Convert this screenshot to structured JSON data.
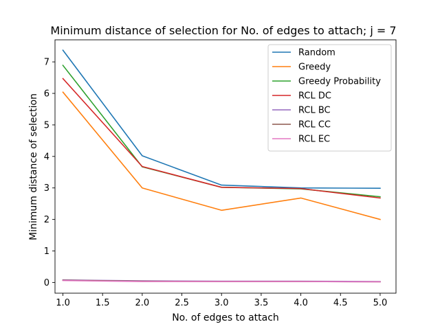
{
  "chart_data": {
    "type": "line",
    "title": "Minimum distance of selection for No. of edges to attach; j = 7",
    "xlabel": "No. of edges to attach",
    "ylabel": "Minimum distance of selection",
    "x": [
      1.0,
      2.0,
      3.0,
      4.0,
      5.0
    ],
    "xlim": [
      0.9,
      5.2
    ],
    "ylim": [
      -0.34,
      7.7
    ],
    "xticks": [
      1.0,
      1.5,
      2.0,
      2.5,
      3.0,
      3.5,
      4.0,
      4.5,
      5.0
    ],
    "xtick_labels": [
      "1.0",
      "1.5",
      "2.0",
      "2.5",
      "3.0",
      "3.5",
      "4.0",
      "4.5",
      "5.0"
    ],
    "yticks": [
      0,
      1,
      2,
      3,
      4,
      5,
      6,
      7
    ],
    "ytick_labels": [
      "0",
      "1",
      "2",
      "3",
      "4",
      "5",
      "6",
      "7"
    ],
    "grid": false,
    "legend_position": "top-right",
    "series": [
      {
        "name": "Random",
        "color": "#1f77b4",
        "values": [
          7.37,
          4.02,
          3.09,
          3.0,
          2.99
        ]
      },
      {
        "name": "Greedy",
        "color": "#ff7f0e",
        "values": [
          6.04,
          3.0,
          2.29,
          2.68,
          2.0
        ]
      },
      {
        "name": "Greedy Probability",
        "color": "#2ca02c",
        "values": [
          6.89,
          3.67,
          3.02,
          2.97,
          2.72
        ]
      },
      {
        "name": "RCL DC",
        "color": "#d62728",
        "values": [
          6.47,
          3.68,
          3.02,
          2.98,
          2.68
        ]
      },
      {
        "name": "RCL BC",
        "color": "#9467bd",
        "values": [
          0.08,
          0.05,
          0.04,
          0.04,
          0.03
        ]
      },
      {
        "name": "RCL CC",
        "color": "#8c564b",
        "values": [
          0.07,
          0.04,
          0.03,
          0.03,
          0.02
        ]
      },
      {
        "name": "RCL EC",
        "color": "#e377c2",
        "values": [
          0.06,
          0.03,
          0.03,
          0.03,
          0.02
        ]
      }
    ]
  }
}
